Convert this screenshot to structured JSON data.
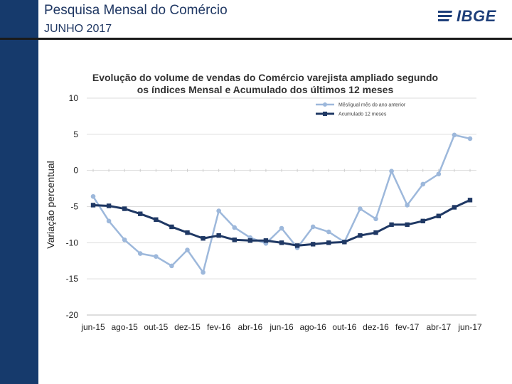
{
  "slide": {
    "title": "Pesquisa Mensal do Comércio",
    "subtitle": "JUNHO 2017",
    "logo_text": "IBGE"
  },
  "colors": {
    "sidebar": "#163a6c",
    "series_light": "#9db8db",
    "series_dark": "#1f3864"
  },
  "chart_data": {
    "type": "line",
    "title_line1": "Evolução do volume de vendas do Comércio varejista ampliado segundo",
    "title_line2": "os índices Mensal e Acumulado dos últimos 12 meses",
    "ylabel": "Variação percentual",
    "xlabel": "",
    "ylim": [
      -20,
      10
    ],
    "yticks": [
      "10",
      "5",
      "0",
      "-5",
      "-10",
      "-15",
      "-20"
    ],
    "ytick_values": [
      10,
      5,
      0,
      -5,
      -10,
      -15,
      -20
    ],
    "x": [
      "jun-15",
      "jul-15",
      "ago-15",
      "set-15",
      "out-15",
      "nov-15",
      "dez-15",
      "jan-16",
      "fev-16",
      "mar-16",
      "abr-16",
      "mai-16",
      "jun-16",
      "jul-16",
      "ago-16",
      "set-16",
      "out-16",
      "nov-16",
      "dez-16",
      "jan-17",
      "fev-17",
      "mar-17",
      "abr-17",
      "mai-17",
      "jun-17"
    ],
    "xtick_labels": [
      "jun-15",
      "ago-15",
      "out-15",
      "dez-15",
      "fev-16",
      "abr-16",
      "jun-16",
      "ago-16",
      "out-16",
      "dez-16",
      "fev-17",
      "abr-17",
      "jun-17"
    ],
    "legend_position": "top-right",
    "series": [
      {
        "name": "Mês/igual mês do ano anterior",
        "color": "#9db8db",
        "values": [
          -3.6,
          -7.0,
          -9.6,
          -11.5,
          -11.9,
          -13.2,
          -11.0,
          -14.1,
          -5.6,
          -7.9,
          -9.3,
          -10.1,
          -8.0,
          -10.7,
          -7.8,
          -8.5,
          -9.9,
          -5.3,
          -6.7,
          -0.1,
          -4.8,
          -1.9,
          -0.5,
          4.9,
          4.4
        ]
      },
      {
        "name": "Acumulado 12 meses",
        "color": "#1f3864",
        "values": [
          -4.8,
          -4.9,
          -5.3,
          -6.0,
          -6.8,
          -7.8,
          -8.6,
          -9.4,
          -9.0,
          -9.6,
          -9.7,
          -9.7,
          -10.0,
          -10.4,
          -10.2,
          -10.0,
          -9.9,
          -9.0,
          -8.6,
          -7.5,
          -7.5,
          -7.0,
          -6.3,
          -5.1,
          -4.1
        ]
      }
    ]
  }
}
